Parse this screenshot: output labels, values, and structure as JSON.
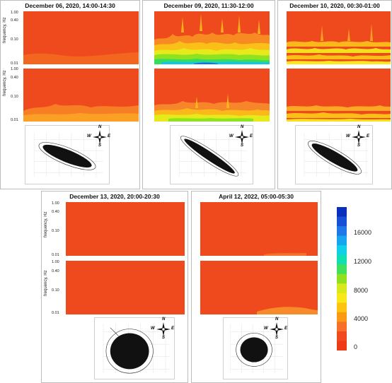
{
  "chart_data": [
    {
      "type": "heatmap",
      "title": "December 06, 2020, 14:00-14:30",
      "ylabel": "frequency, Hz",
      "yticks": [
        "1.00",
        "0.40",
        "0.10",
        "0.01"
      ],
      "variant": "quiet"
    },
    {
      "type": "heatmap",
      "title": "December 09, 2020, 11:30-12:00",
      "ylabel": "",
      "yticks": [],
      "variant": "strong"
    },
    {
      "type": "heatmap",
      "title": "December 10, 2020, 00:30-01:00",
      "ylabel": "",
      "yticks": [],
      "variant": "bands"
    },
    {
      "type": "heatmap",
      "title": "December 13, 2020, 20:00-20:30",
      "ylabel": "frequency, Hz",
      "yticks": [
        "1.00",
        "0.40",
        "0.10",
        "0.01"
      ],
      "variant": "flat"
    },
    {
      "type": "heatmap",
      "title": "April 12, 2022, 05:00-05:30",
      "ylabel": "",
      "yticks": [],
      "variant": "flat"
    }
  ],
  "compass": {
    "n": "N",
    "s": "S",
    "w": "W",
    "e": "E"
  },
  "colorbar": {
    "ticks": [
      "16000",
      "12000",
      "8000",
      "4000",
      "0"
    ],
    "colors": [
      "#0a2fbf",
      "#1550d6",
      "#1e78e8",
      "#18a5f0",
      "#10cfe8",
      "#10e0b0",
      "#3fe05a",
      "#90e020",
      "#d8e81a",
      "#f8e818",
      "#fcc410",
      "#fb9a12",
      "#f6702a",
      "#f04a1e",
      "#ef3a18"
    ]
  }
}
